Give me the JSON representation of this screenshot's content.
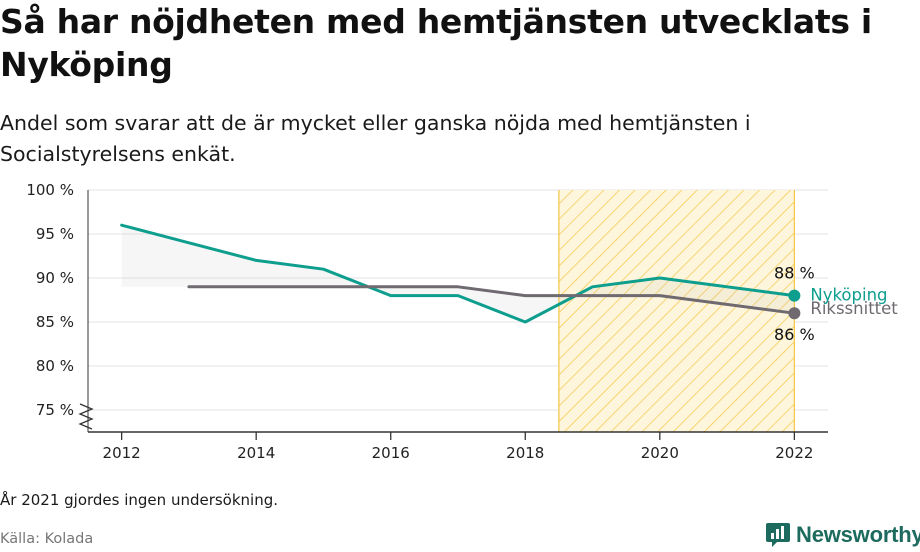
{
  "title": "Så har nöjdheten med hemtjänsten utvecklats i Nyköping",
  "subtitle": "Andel som svarar att de är mycket eller ganska nöjda med hemtjänsten i Socialstyrelsens enkät.",
  "footnote": "År 2021 gjordes ingen undersökning.",
  "source": "Källa: Kolada",
  "brand": "Newsworthy",
  "colors": {
    "nykoping": "#0e9e8e",
    "riksnittet": "#6e6a70",
    "highlight": "#f6c544",
    "axis": "#333333",
    "grid": "#e3e3e3",
    "brand": "#1d6b5e"
  },
  "icons": {
    "axis_break": "zigzag-break-icon",
    "logo": "bar-chart-speech-bubble-icon"
  },
  "chart_data": {
    "type": "line",
    "x": [
      2012,
      2013,
      2014,
      2015,
      2016,
      2017,
      2018,
      2019,
      2020,
      2022
    ],
    "series": [
      {
        "name": "Nyköping",
        "values": [
          96,
          94,
          92,
          91,
          88,
          88,
          85,
          89,
          90,
          88
        ],
        "end_label": "88 %"
      },
      {
        "name": "Rikssnittet",
        "values": [
          null,
          89,
          89,
          89,
          89,
          89,
          88,
          88,
          88,
          86
        ],
        "end_label": "86 %"
      }
    ],
    "xticks": [
      "2012",
      "2014",
      "2016",
      "2018",
      "2020",
      "2022"
    ],
    "yticks": [
      "75 %",
      "80 %",
      "85 %",
      "90 %",
      "95 %",
      "100 %"
    ],
    "ytick_values": [
      75,
      80,
      85,
      90,
      95,
      100
    ],
    "xlim": [
      2011.5,
      2022.5
    ],
    "ylim": [
      72.5,
      100
    ],
    "highlight_range": [
      2018.5,
      2022
    ],
    "grid": true,
    "legend": "inline at line ends (right)"
  }
}
